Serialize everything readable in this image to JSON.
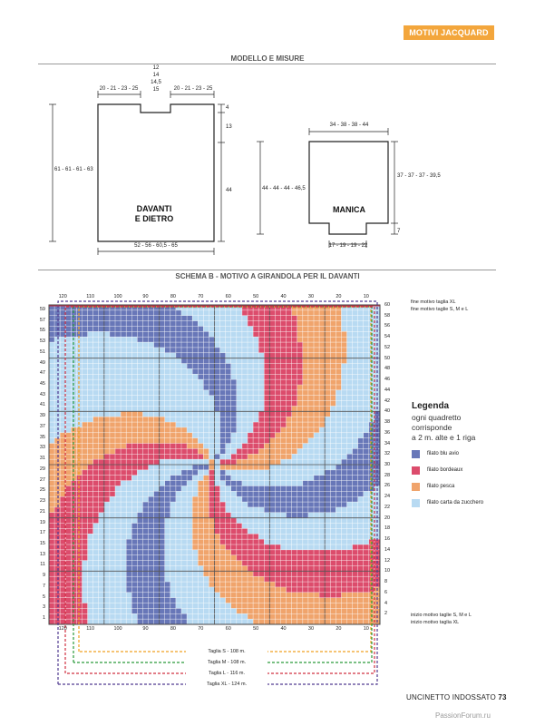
{
  "header": {
    "tag": "MOTIVI JACQUARD"
  },
  "modello": {
    "title": "MODELLO E MISURE",
    "body_label_1": "DAVANTI",
    "body_label_2": "E DIETRO",
    "body_top_left": "20 - 21 - 23 - 25",
    "body_top_right": "20 - 21 - 23 - 25",
    "neck": [
      "12",
      "14",
      "14,5",
      "15"
    ],
    "body_right_4": "4",
    "body_right_13": "13",
    "body_right_44": "44",
    "body_left": "61 - 61 - 61 - 63",
    "body_bottom": "52 - 56 - 60,5 - 65",
    "sleeve_label": "MANICA",
    "sleeve_top": "34 - 38 - 38 - 44",
    "sleeve_left": "44 - 44 - 44 - 46,5",
    "sleeve_right": "37 - 37 - 37 - 39,5",
    "sleeve_right_7": "7",
    "sleeve_bottom": "17 - 19 - 19 - 22"
  },
  "schema": {
    "title": "SCHEMA B - MOTIVO A GIRANDOLA PER IL DAVANTI",
    "col_labels": [
      "120",
      "110",
      "100",
      "90",
      "80",
      "70",
      "60",
      "50",
      "40",
      "30",
      "20",
      "10"
    ],
    "left_rows": [
      "59",
      "57",
      "55",
      "53",
      "51",
      "49",
      "47",
      "45",
      "43",
      "41",
      "39",
      "37",
      "35",
      "33",
      "31",
      "29",
      "27",
      "25",
      "23",
      "21",
      "19",
      "17",
      "15",
      "13",
      "11",
      "9",
      "7",
      "5",
      "3",
      "1"
    ],
    "right_rows": [
      "60",
      "58",
      "56",
      "54",
      "52",
      "50",
      "48",
      "46",
      "44",
      "42",
      "40",
      "38",
      "36",
      "34",
      "32",
      "30",
      "28",
      "26",
      "24",
      "22",
      "20",
      "18",
      "16",
      "14",
      "12",
      "10",
      "8",
      "6",
      "4",
      "2"
    ],
    "annot_top_xl": "fine motivo taglia XL",
    "annot_top_sml": "fine motivo taglie S, M e L",
    "annot_bot_sml": "inizio motivo taglie S, M e L",
    "annot_bot_xl": "inizio motivo taglia XL",
    "sizes": [
      {
        "label": "Taglia S - 108 m.",
        "color": "#f0a020"
      },
      {
        "label": "Taglia M - 108 m.",
        "color": "#2a9a3a"
      },
      {
        "label": "Taglia L - 116 m.",
        "color": "#d03040"
      },
      {
        "label": "Taglia XL - 124 m.",
        "color": "#503a90"
      }
    ]
  },
  "legend": {
    "title": "Legenda",
    "text": [
      "ogni quadretto",
      "corrisponde",
      "a 2 m. alte e 1 riga"
    ],
    "items": [
      {
        "label": "filato blu avio",
        "color": "#6877b8"
      },
      {
        "label": "filato bordeaux",
        "color": "#dc4c6c"
      },
      {
        "label": "filato pesca",
        "color": "#f0a46c"
      },
      {
        "label": "filato carta da zucchero",
        "color": "#b8daf2"
      }
    ]
  },
  "footer": {
    "magazine": "UNCINETTO INDOSSATO",
    "page": "73"
  },
  "watermark": "PassionForum.ru"
}
